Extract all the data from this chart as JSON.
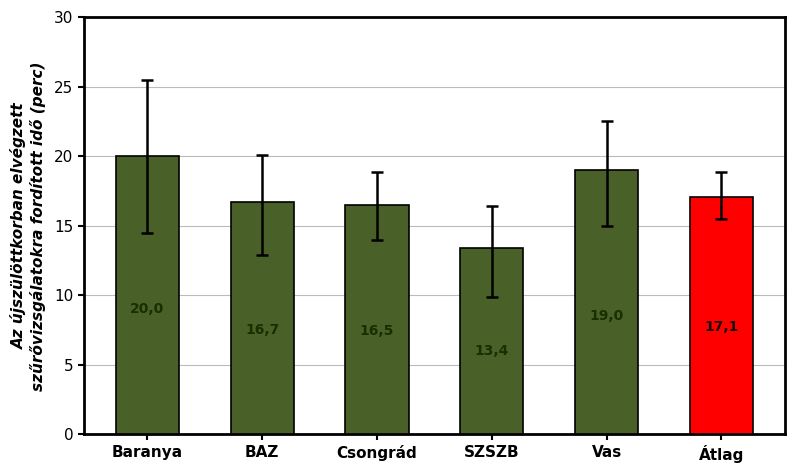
{
  "categories": [
    "Baranya",
    "BAZ",
    "Csongrád",
    "SZSZB",
    "Vas",
    "Átlag"
  ],
  "values": [
    20.0,
    16.7,
    16.5,
    13.4,
    19.0,
    17.1
  ],
  "errors_upper": [
    5.5,
    3.4,
    2.4,
    3.0,
    3.5,
    1.8
  ],
  "errors_lower": [
    5.5,
    3.8,
    2.5,
    3.5,
    4.0,
    1.6
  ],
  "bar_colors": [
    "#4A6029",
    "#4A6029",
    "#4A6029",
    "#4A6029",
    "#4A6029",
    "#FF0000"
  ],
  "ylabel_line1": "Az újszülöttkorban elvégzett",
  "ylabel_line2": "szűrővizsgálatokra fordított idő (perc)",
  "ylim": [
    0,
    30
  ],
  "yticks": [
    0,
    5,
    10,
    15,
    20,
    25,
    30
  ],
  "label_color_green": "#1A2E00",
  "label_color_red": "#1A0000",
  "label_fontsize": 10,
  "error_capsize": 4,
  "background_color": "#FFFFFF",
  "grid_color": "#BBBBBB",
  "border_color": "#000000",
  "tick_fontsize": 11,
  "ylabel_fontsize": 11
}
